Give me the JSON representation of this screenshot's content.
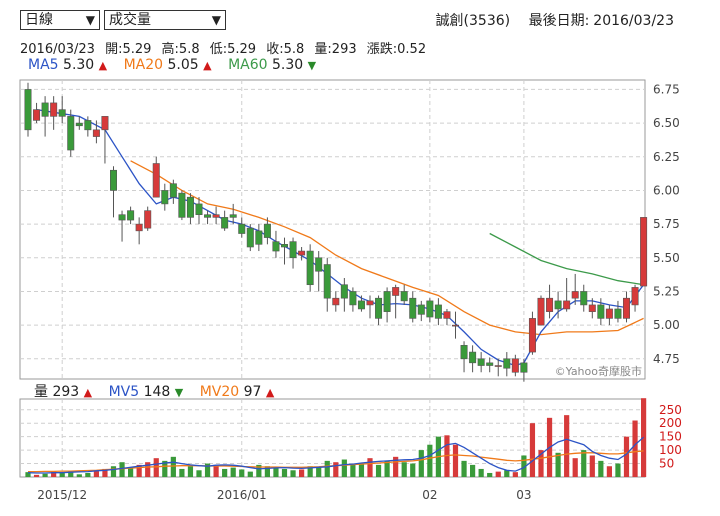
{
  "controls": {
    "period_select": "日線",
    "indicator_select": "成交量"
  },
  "header": {
    "stock": "誠創(3536)",
    "last_date_label": "最後日期:",
    "last_date": "2016/03/23"
  },
  "ohlc_info": {
    "date": "2016/03/23",
    "open": "開:5.29",
    "high": "高:5.8",
    "low": "低:5.29",
    "close": "收:5.8",
    "volume": "量:293",
    "change": "漲跌:0.52"
  },
  "ma_legend": [
    {
      "label": "MA5",
      "value": "5.30",
      "dir": "up",
      "color": "#2c54c6"
    },
    {
      "label": "MA20",
      "value": "5.05",
      "dir": "up",
      "color": "#f07a1a"
    },
    {
      "label": "MA60",
      "value": "5.30",
      "dir": "down",
      "color": "#3c9a4a"
    }
  ],
  "vol_legend": [
    {
      "label": "量",
      "value": "293",
      "dir": "up",
      "color": "#222222"
    },
    {
      "label": "MV5",
      "value": "148",
      "dir": "down",
      "color": "#2c54c6"
    },
    {
      "label": "MV20",
      "value": "97",
      "dir": "up",
      "color": "#f07a1a"
    }
  ],
  "watermark": "©Yahoo奇摩股市",
  "colors": {
    "up": "#d63a3a",
    "down": "#3a9a3a",
    "ma5": "#2c54c6",
    "ma20": "#f07a1a",
    "ma60": "#3c9a4a"
  },
  "chart_data": [
    {
      "type": "candlestick",
      "price_ticks": [
        "6.75",
        "6.50",
        "6.25",
        "6.00",
        "5.75",
        "5.50",
        "5.25",
        "5.00",
        "4.75"
      ],
      "ylim": [
        4.6,
        6.82
      ],
      "x_ticks": [
        {
          "label": "2015/12",
          "index": 4
        },
        {
          "label": "2016/01",
          "index": 25
        },
        {
          "label": "02",
          "index": 47
        },
        {
          "label": "03",
          "index": 58
        }
      ],
      "candles": [
        [
          6.75,
          6.45,
          6.8,
          6.4
        ],
        [
          6.52,
          6.6,
          6.65,
          6.5
        ],
        [
          6.65,
          6.55,
          6.7,
          6.4
        ],
        [
          6.55,
          6.65,
          6.7,
          6.45
        ],
        [
          6.6,
          6.55,
          6.7,
          6.5
        ],
        [
          6.55,
          6.3,
          6.6,
          6.25
        ],
        [
          6.5,
          6.48,
          6.55,
          6.45
        ],
        [
          6.52,
          6.45,
          6.55,
          6.4
        ],
        [
          6.4,
          6.45,
          6.52,
          6.35
        ],
        [
          6.45,
          6.55,
          6.55,
          6.2
        ],
        [
          6.15,
          6.0,
          6.18,
          5.8
        ],
        [
          5.82,
          5.78,
          5.85,
          5.62
        ],
        [
          5.85,
          5.78,
          5.88,
          5.75
        ],
        [
          5.7,
          5.75,
          5.8,
          5.6
        ],
        [
          5.72,
          5.85,
          5.88,
          5.7
        ],
        [
          5.95,
          6.2,
          6.25,
          5.95
        ],
        [
          6.0,
          5.9,
          6.05,
          5.85
        ],
        [
          6.05,
          5.95,
          6.08,
          5.9
        ],
        [
          5.98,
          5.8,
          6.0,
          5.78
        ],
        [
          5.95,
          5.8,
          5.98,
          5.75
        ],
        [
          5.9,
          5.82,
          5.95,
          5.75
        ],
        [
          5.82,
          5.8,
          5.85,
          5.75
        ],
        [
          5.8,
          5.82,
          5.88,
          5.75
        ],
        [
          5.8,
          5.72,
          5.85,
          5.7
        ],
        [
          5.82,
          5.8,
          5.9,
          5.75
        ],
        [
          5.75,
          5.68,
          5.8,
          5.65
        ],
        [
          5.72,
          5.58,
          5.75,
          5.55
        ],
        [
          5.7,
          5.6,
          5.75,
          5.55
        ],
        [
          5.75,
          5.65,
          5.8,
          5.6
        ],
        [
          5.62,
          5.55,
          5.7,
          5.5
        ],
        [
          5.6,
          5.58,
          5.65,
          5.45
        ],
        [
          5.62,
          5.5,
          5.65,
          5.42
        ],
        [
          5.52,
          5.55,
          5.58,
          5.48
        ],
        [
          5.55,
          5.3,
          5.6,
          5.25
        ],
        [
          5.5,
          5.4,
          5.55,
          5.25
        ],
        [
          5.45,
          5.2,
          5.5,
          5.1
        ],
        [
          5.15,
          5.2,
          5.25,
          5.1
        ],
        [
          5.3,
          5.2,
          5.35,
          5.1
        ],
        [
          5.25,
          5.15,
          5.28,
          5.1
        ],
        [
          5.18,
          5.12,
          5.22,
          5.1
        ],
        [
          5.15,
          5.18,
          5.22,
          5.05
        ],
        [
          5.2,
          5.05,
          5.22,
          5.0
        ],
        [
          5.25,
          5.1,
          5.28,
          5.02
        ],
        [
          5.22,
          5.28,
          5.3,
          5.05
        ],
        [
          5.25,
          5.18,
          5.3,
          5.15
        ],
        [
          5.2,
          5.05,
          5.25,
          5.02
        ],
        [
          5.15,
          5.08,
          5.18,
          5.03
        ],
        [
          5.18,
          5.06,
          5.2,
          5.02
        ],
        [
          5.15,
          5.05,
          5.2,
          5.0
        ],
        [
          5.05,
          5.1,
          5.12,
          5.0
        ],
        [
          5.0,
          5.0,
          5.1,
          4.9
        ],
        [
          4.85,
          4.75,
          4.88,
          4.65
        ],
        [
          4.8,
          4.72,
          4.85,
          4.65
        ],
        [
          4.75,
          4.7,
          4.8,
          4.65
        ],
        [
          4.72,
          4.7,
          4.76,
          4.65
        ],
        [
          4.7,
          4.7,
          4.75,
          4.62
        ],
        [
          4.75,
          4.68,
          4.8,
          4.62
        ],
        [
          4.65,
          4.75,
          4.78,
          4.62
        ],
        [
          4.72,
          4.65,
          4.75,
          4.58
        ],
        [
          4.8,
          5.05,
          5.1,
          4.78
        ],
        [
          5.0,
          5.2,
          5.22,
          5.0
        ],
        [
          5.1,
          5.2,
          5.3,
          5.05
        ],
        [
          5.18,
          5.12,
          5.25,
          5.05
        ],
        [
          5.12,
          5.18,
          5.35,
          5.1
        ],
        [
          5.2,
          5.25,
          5.38,
          5.15
        ],
        [
          5.25,
          5.15,
          5.3,
          5.1
        ],
        [
          5.1,
          5.15,
          5.2,
          5.05
        ],
        [
          5.15,
          5.05,
          5.2,
          5.0
        ],
        [
          5.05,
          5.12,
          5.15,
          5.0
        ],
        [
          5.12,
          5.05,
          5.18,
          5.02
        ],
        [
          5.05,
          5.2,
          5.25,
          5.02
        ],
        [
          5.15,
          5.28,
          5.3,
          5.1
        ],
        [
          5.29,
          5.8,
          5.8,
          5.29
        ]
      ],
      "ma5": [
        [
          1,
          6.6
        ],
        [
          3,
          6.58
        ],
        [
          6,
          6.55
        ],
        [
          9,
          6.45
        ],
        [
          11,
          6.25
        ],
        [
          13,
          6.05
        ],
        [
          15,
          5.9
        ],
        [
          17,
          5.95
        ],
        [
          19,
          5.92
        ],
        [
          21,
          5.85
        ],
        [
          23,
          5.78
        ],
        [
          25,
          5.75
        ],
        [
          27,
          5.7
        ],
        [
          29,
          5.62
        ],
        [
          31,
          5.55
        ],
        [
          33,
          5.48
        ],
        [
          35,
          5.38
        ],
        [
          37,
          5.28
        ],
        [
          39,
          5.2
        ],
        [
          41,
          5.15
        ],
        [
          43,
          5.16
        ],
        [
          45,
          5.15
        ],
        [
          47,
          5.12
        ],
        [
          49,
          5.07
        ],
        [
          51,
          4.95
        ],
        [
          53,
          4.82
        ],
        [
          55,
          4.74
        ],
        [
          57,
          4.7
        ],
        [
          58,
          4.72
        ],
        [
          60,
          4.95
        ],
        [
          62,
          5.1
        ],
        [
          64,
          5.18
        ],
        [
          66,
          5.18
        ],
        [
          68,
          5.15
        ],
        [
          70,
          5.13
        ],
        [
          72,
          5.3
        ]
      ],
      "ma20": [
        [
          12,
          6.22
        ],
        [
          15,
          6.12
        ],
        [
          18,
          6.0
        ],
        [
          21,
          5.9
        ],
        [
          24,
          5.86
        ],
        [
          27,
          5.8
        ],
        [
          30,
          5.73
        ],
        [
          33,
          5.65
        ],
        [
          36,
          5.52
        ],
        [
          39,
          5.42
        ],
        [
          42,
          5.35
        ],
        [
          45,
          5.28
        ],
        [
          48,
          5.22
        ],
        [
          51,
          5.1
        ],
        [
          54,
          5.0
        ],
        [
          57,
          4.95
        ],
        [
          60,
          4.93
        ],
        [
          63,
          4.95
        ],
        [
          66,
          4.95
        ],
        [
          69,
          4.96
        ],
        [
          72,
          5.05
        ]
      ],
      "ma60": [
        [
          54,
          5.68
        ],
        [
          57,
          5.58
        ],
        [
          60,
          5.48
        ],
        [
          63,
          5.42
        ],
        [
          66,
          5.38
        ],
        [
          69,
          5.33
        ],
        [
          72,
          5.3
        ]
      ],
      "volume_ticks": [
        "250",
        "200",
        "150",
        "100",
        "50"
      ],
      "volume_ylim": [
        0,
        290
      ],
      "volume": [
        18,
        8,
        12,
        22,
        16,
        20,
        10,
        15,
        22,
        30,
        40,
        55,
        35,
        45,
        55,
        70,
        60,
        75,
        30,
        40,
        25,
        50,
        45,
        30,
        35,
        28,
        20,
        45,
        40,
        35,
        30,
        25,
        28,
        40,
        35,
        60,
        55,
        65,
        45,
        50,
        70,
        45,
        60,
        75,
        55,
        50,
        100,
        120,
        150,
        155,
        120,
        60,
        45,
        30,
        15,
        20,
        25,
        18,
        80,
        200,
        100,
        220,
        90,
        230,
        70,
        100,
        80,
        60,
        40,
        50,
        150,
        210,
        293
      ],
      "mv5": [
        16,
        15,
        15,
        16,
        16,
        18,
        19,
        20,
        23,
        25,
        28,
        32,
        36,
        40,
        44,
        48,
        52,
        55,
        50,
        45,
        42,
        40,
        44,
        45,
        44,
        40,
        35,
        30,
        32,
        34,
        35,
        33,
        32,
        34,
        36,
        38,
        42,
        46,
        48,
        52,
        55,
        58,
        60,
        62,
        64,
        65,
        70,
        80,
        100,
        120,
        125,
        110,
        90,
        70,
        50,
        35,
        25,
        22,
        35,
        60,
        85,
        110,
        130,
        140,
        130,
        120,
        95,
        80,
        70,
        65,
        85,
        120,
        148
      ],
      "mv20": [
        20,
        20,
        21,
        21,
        22,
        22,
        23,
        24,
        25,
        27,
        29,
        31,
        33,
        35,
        37,
        38,
        40,
        41,
        42,
        42,
        42,
        41,
        41,
        41,
        40,
        39,
        38,
        37,
        37,
        37,
        36,
        36,
        36,
        37,
        38,
        40,
        42,
        44,
        46,
        48,
        50,
        52,
        54,
        56,
        58,
        60,
        64,
        70,
        76,
        80,
        82,
        80,
        78,
        74,
        70,
        66,
        62,
        60,
        62,
        66,
        70,
        75,
        80,
        85,
        88,
        90,
        90,
        88,
        86,
        86,
        90,
        94,
        97
      ]
    }
  ]
}
